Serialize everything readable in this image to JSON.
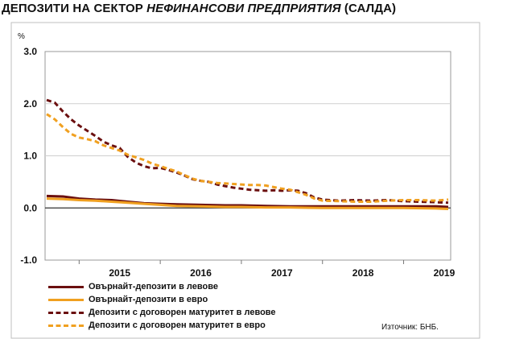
{
  "title": {
    "part1": "ДЕПОЗИТИ НА СЕКТОР ",
    "part2": "НЕФИНАНСОВИ ПРЕДПРИЯТИЯ",
    "part3": " (САЛДА)"
  },
  "source": "Източник: БНБ.",
  "colors": {
    "dark_red": "#6b0f0f",
    "orange": "#f0a020"
  },
  "chart_data": {
    "type": "line",
    "unit_label": "%",
    "ylim": [
      -1.0,
      3.0
    ],
    "yticks": [
      "3.0",
      "2.0",
      "1.0",
      "0.0",
      "-1.0"
    ],
    "ytick_values": [
      3.0,
      2.0,
      1.0,
      0.0,
      -1.0
    ],
    "xlim": [
      2014.58,
      2019.58
    ],
    "year_labels": [
      "2015",
      "2016",
      "2017",
      "2018",
      "2019"
    ],
    "grid": true,
    "legend_position": "bottom-left",
    "series": [
      {
        "name": "Овърнайт-депозити в левове",
        "style": "solid",
        "color": "#6b0f0f",
        "points": [
          [
            2014.6,
            0.23
          ],
          [
            2014.8,
            0.22
          ],
          [
            2015.0,
            0.18
          ],
          [
            2015.2,
            0.16
          ],
          [
            2015.4,
            0.15
          ],
          [
            2015.6,
            0.12
          ],
          [
            2015.8,
            0.09
          ],
          [
            2016.0,
            0.08
          ],
          [
            2016.2,
            0.07
          ],
          [
            2016.5,
            0.06
          ],
          [
            2016.8,
            0.05
          ],
          [
            2017.0,
            0.05
          ],
          [
            2017.3,
            0.04
          ],
          [
            2017.6,
            0.03
          ],
          [
            2018.0,
            0.03
          ],
          [
            2018.5,
            0.03
          ],
          [
            2019.0,
            0.03
          ],
          [
            2019.4,
            0.03
          ],
          [
            2019.55,
            0.02
          ]
        ]
      },
      {
        "name": "Овърнайт-депозити в евро",
        "style": "solid",
        "color": "#f0a020",
        "points": [
          [
            2014.6,
            0.18
          ],
          [
            2014.8,
            0.17
          ],
          [
            2015.0,
            0.15
          ],
          [
            2015.2,
            0.14
          ],
          [
            2015.4,
            0.12
          ],
          [
            2015.6,
            0.1
          ],
          [
            2015.8,
            0.08
          ],
          [
            2016.0,
            0.06
          ],
          [
            2016.2,
            0.04
          ],
          [
            2016.5,
            0.03
          ],
          [
            2016.8,
            0.02
          ],
          [
            2017.0,
            0.02
          ],
          [
            2017.3,
            0.01
          ],
          [
            2017.6,
            0.01
          ],
          [
            2018.0,
            0.0
          ],
          [
            2018.5,
            0.0
          ],
          [
            2019.0,
            0.0
          ],
          [
            2019.4,
            -0.01
          ],
          [
            2019.55,
            -0.02
          ]
        ]
      },
      {
        "name": "Депозити с договорен матуритет в левове",
        "style": "dashed",
        "color": "#6b0f0f",
        "points": [
          [
            2014.6,
            2.07
          ],
          [
            2014.7,
            2.02
          ],
          [
            2014.8,
            1.85
          ],
          [
            2014.9,
            1.7
          ],
          [
            2015.0,
            1.58
          ],
          [
            2015.1,
            1.48
          ],
          [
            2015.2,
            1.38
          ],
          [
            2015.3,
            1.27
          ],
          [
            2015.4,
            1.2
          ],
          [
            2015.5,
            1.15
          ],
          [
            2015.6,
            0.98
          ],
          [
            2015.7,
            0.87
          ],
          [
            2015.8,
            0.8
          ],
          [
            2015.9,
            0.76
          ],
          [
            2016.0,
            0.77
          ],
          [
            2016.1,
            0.73
          ],
          [
            2016.2,
            0.68
          ],
          [
            2016.3,
            0.62
          ],
          [
            2016.4,
            0.55
          ],
          [
            2016.5,
            0.52
          ],
          [
            2016.6,
            0.5
          ],
          [
            2016.7,
            0.45
          ],
          [
            2016.8,
            0.42
          ],
          [
            2016.9,
            0.39
          ],
          [
            2017.0,
            0.37
          ],
          [
            2017.1,
            0.35
          ],
          [
            2017.2,
            0.34
          ],
          [
            2017.3,
            0.33
          ],
          [
            2017.4,
            0.34
          ],
          [
            2017.5,
            0.33
          ],
          [
            2017.6,
            0.34
          ],
          [
            2017.7,
            0.33
          ],
          [
            2017.8,
            0.28
          ],
          [
            2017.9,
            0.2
          ],
          [
            2018.0,
            0.16
          ],
          [
            2018.2,
            0.14
          ],
          [
            2018.4,
            0.15
          ],
          [
            2018.6,
            0.14
          ],
          [
            2018.8,
            0.15
          ],
          [
            2019.0,
            0.13
          ],
          [
            2019.2,
            0.12
          ],
          [
            2019.4,
            0.11
          ],
          [
            2019.55,
            0.1
          ]
        ]
      },
      {
        "name": "Депозити с договорен матуритет в евро",
        "style": "dashed",
        "color": "#f0a020",
        "points": [
          [
            2014.6,
            1.8
          ],
          [
            2014.7,
            1.7
          ],
          [
            2014.8,
            1.55
          ],
          [
            2014.9,
            1.42
          ],
          [
            2015.0,
            1.35
          ],
          [
            2015.1,
            1.32
          ],
          [
            2015.2,
            1.28
          ],
          [
            2015.3,
            1.2
          ],
          [
            2015.4,
            1.15
          ],
          [
            2015.5,
            1.1
          ],
          [
            2015.6,
            1.02
          ],
          [
            2015.7,
            0.97
          ],
          [
            2015.8,
            0.92
          ],
          [
            2015.9,
            0.85
          ],
          [
            2016.0,
            0.8
          ],
          [
            2016.1,
            0.75
          ],
          [
            2016.2,
            0.7
          ],
          [
            2016.3,
            0.63
          ],
          [
            2016.4,
            0.56
          ],
          [
            2016.5,
            0.52
          ],
          [
            2016.6,
            0.5
          ],
          [
            2016.7,
            0.48
          ],
          [
            2016.8,
            0.47
          ],
          [
            2016.9,
            0.46
          ],
          [
            2017.0,
            0.45
          ],
          [
            2017.1,
            0.44
          ],
          [
            2017.2,
            0.44
          ],
          [
            2017.3,
            0.43
          ],
          [
            2017.4,
            0.4
          ],
          [
            2017.5,
            0.37
          ],
          [
            2017.6,
            0.35
          ],
          [
            2017.7,
            0.3
          ],
          [
            2017.8,
            0.25
          ],
          [
            2017.9,
            0.18
          ],
          [
            2018.0,
            0.14
          ],
          [
            2018.2,
            0.13
          ],
          [
            2018.4,
            0.12
          ],
          [
            2018.6,
            0.12
          ],
          [
            2018.8,
            0.14
          ],
          [
            2019.0,
            0.15
          ],
          [
            2019.2,
            0.15
          ],
          [
            2019.4,
            0.14
          ],
          [
            2019.55,
            0.16
          ]
        ]
      }
    ]
  }
}
